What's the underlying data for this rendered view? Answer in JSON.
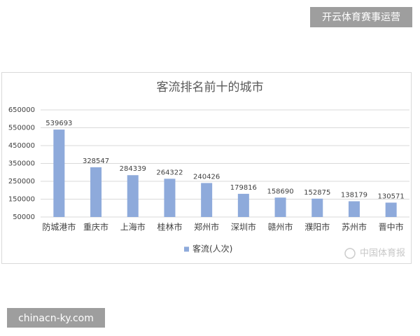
{
  "chart_data": {
    "type": "bar",
    "title": "客流排名前十的城市",
    "categories": [
      "防城港市",
      "重庆市",
      "上海市",
      "桂林市",
      "郑州市",
      "深圳市",
      "赣州市",
      "濮阳市",
      "苏州市",
      "晋中市"
    ],
    "series": [
      {
        "name": "客流(人次)",
        "color": "#8eaadb",
        "values": [
          539693,
          328547,
          284339,
          264322,
          240426,
          179816,
          158690,
          152875,
          138179,
          130571
        ]
      }
    ],
    "ylim": [
      50000,
      650000
    ],
    "yticks": [
      50000,
      150000,
      250000,
      350000,
      450000,
      550000,
      650000
    ],
    "grid": true,
    "legend": "bottom"
  },
  "overlay": {
    "brand": "开云体育赛事运营",
    "weibo": "中国体育报",
    "site": "chinacn-ky.com"
  }
}
